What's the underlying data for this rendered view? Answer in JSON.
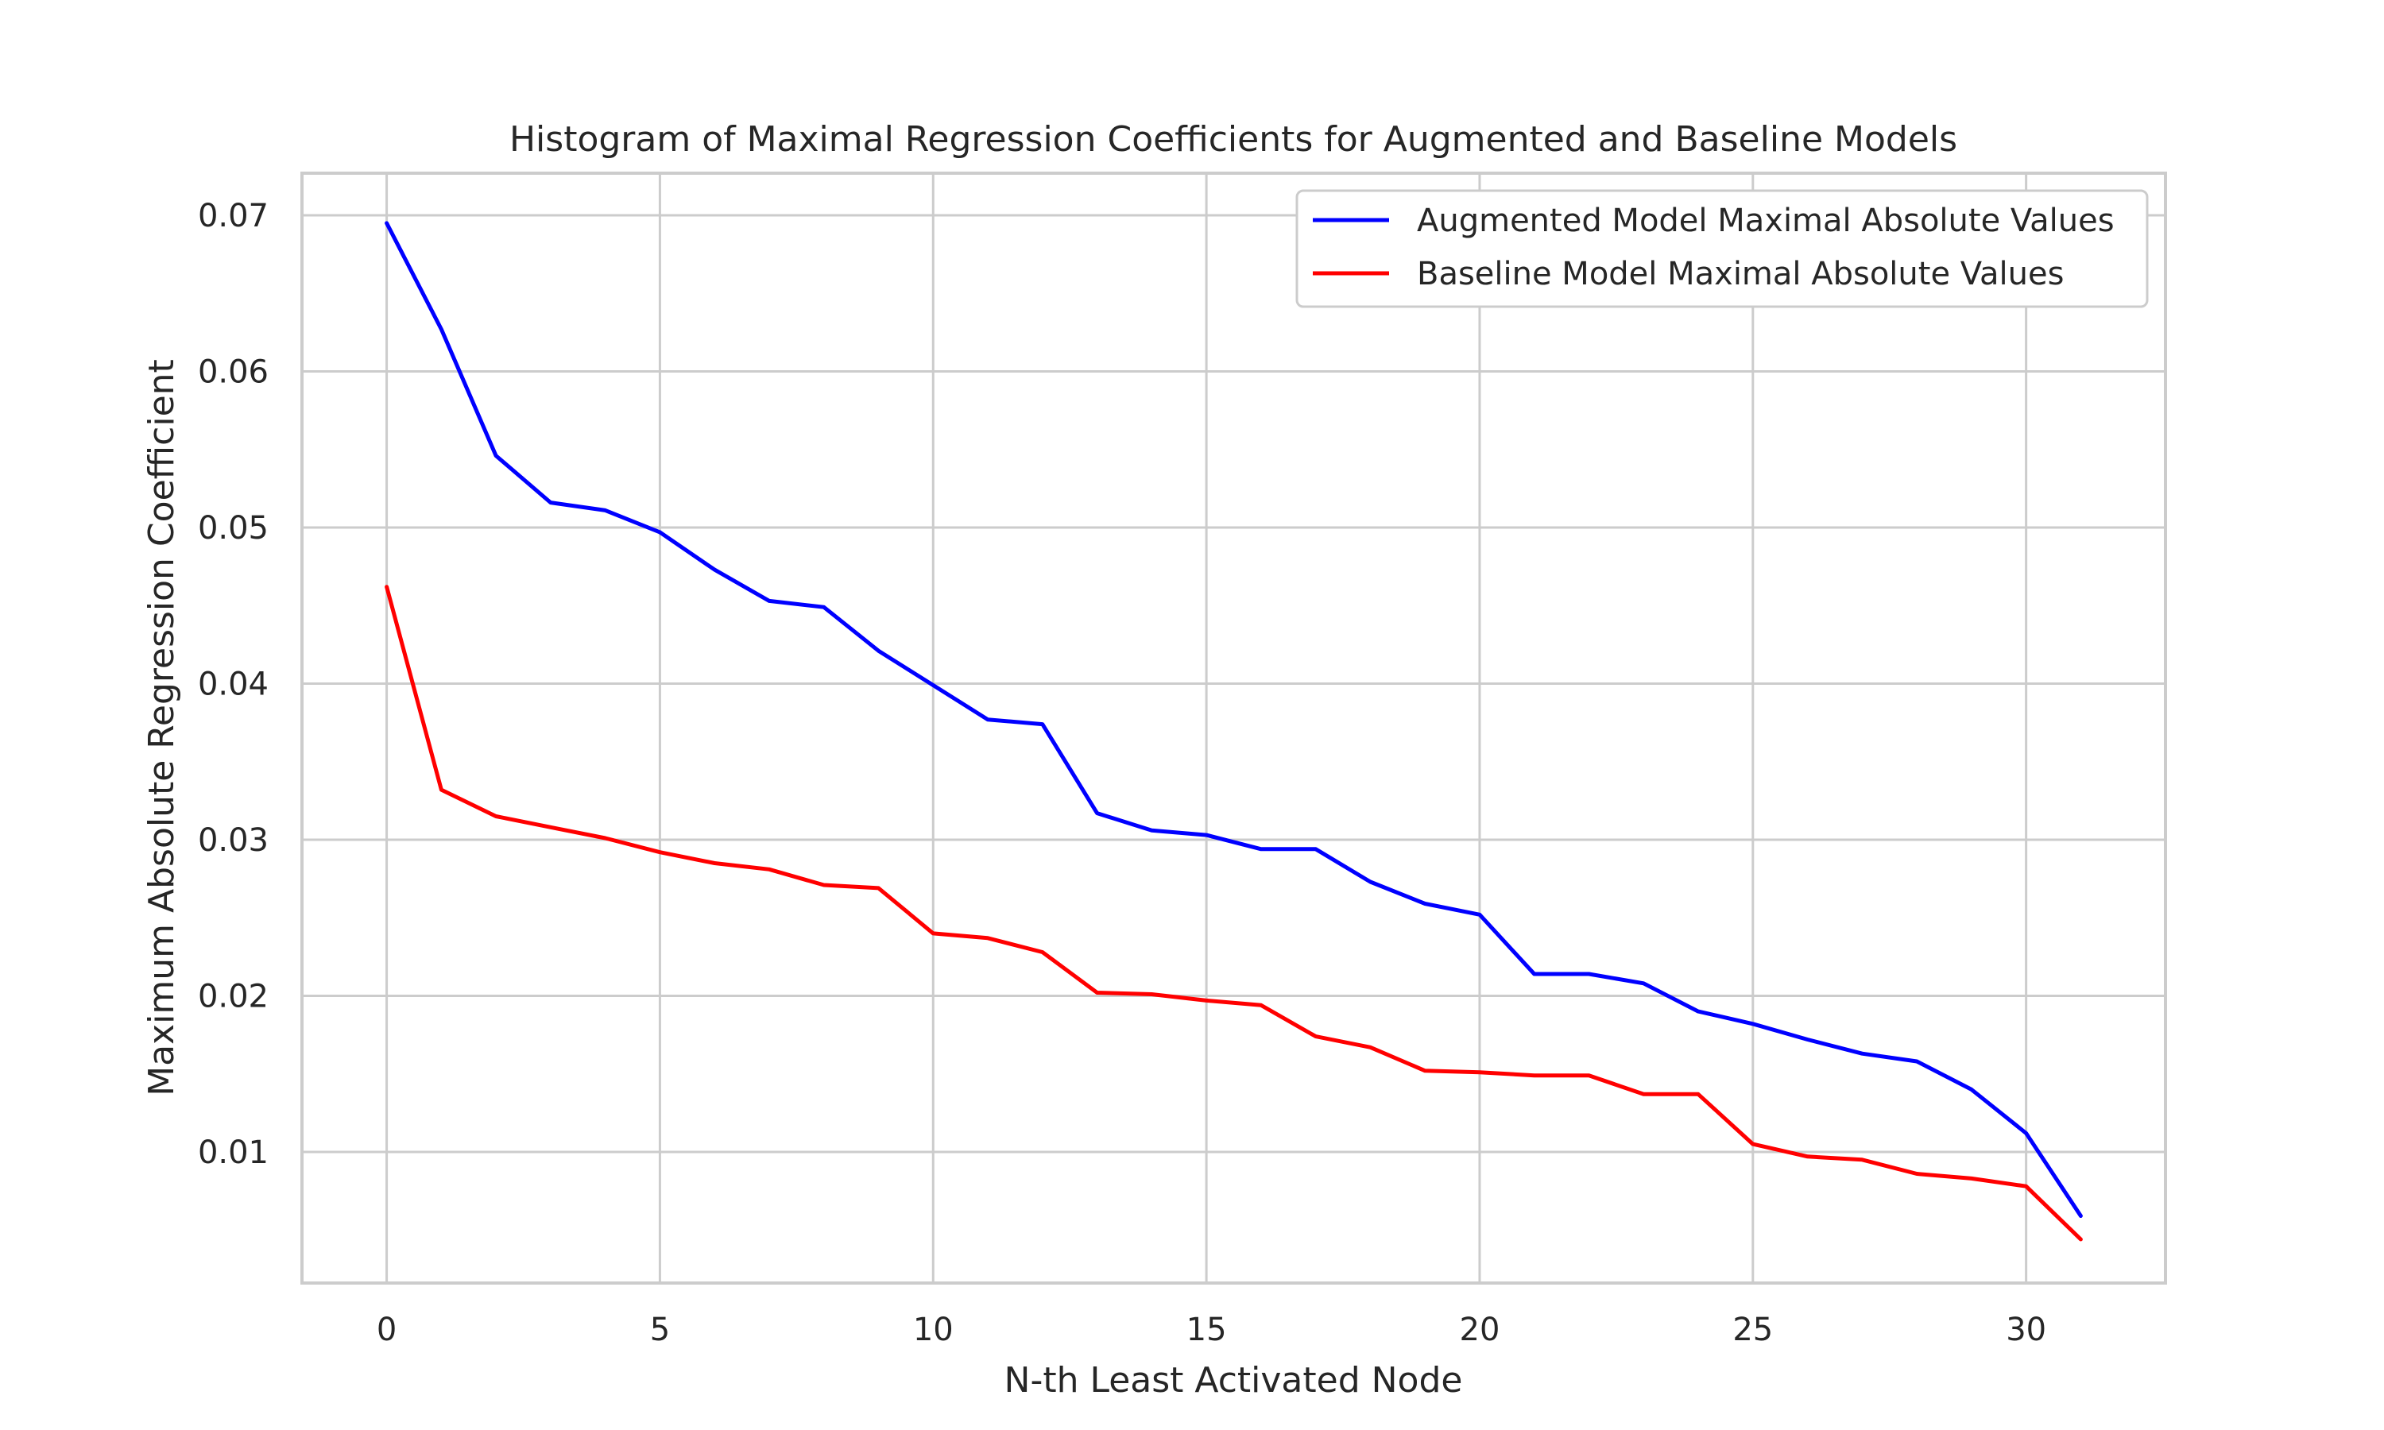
{
  "chart_data": {
    "type": "line",
    "title": "Histogram of Maximal Regression Coefficients for Augmented and Baseline Models",
    "xlabel": "N-th Least Activated Node",
    "ylabel": "Maximum Absolute Regression Coefficient",
    "xlim": [
      -1.55,
      32.55
    ],
    "ylim": [
      0.0016,
      0.0727
    ],
    "xticks": [
      0,
      5,
      10,
      15,
      20,
      25,
      30
    ],
    "yticks": [
      0.01,
      0.02,
      0.03,
      0.04,
      0.05,
      0.06,
      0.07
    ],
    "ytick_labels": [
      "0.01",
      "0.02",
      "0.03",
      "0.04",
      "0.05",
      "0.06",
      "0.07"
    ],
    "grid": true,
    "legend_position": "top-right",
    "x": [
      0,
      1,
      2,
      3,
      4,
      5,
      6,
      7,
      8,
      9,
      10,
      11,
      12,
      13,
      14,
      15,
      16,
      17,
      18,
      19,
      20,
      21,
      22,
      23,
      24,
      25,
      26,
      27,
      28,
      29,
      30,
      31
    ],
    "series": [
      {
        "name": "Augmented Model Maximal Absolute Values",
        "color": "#0000ff",
        "values": [
          0.0695,
          0.0627,
          0.0546,
          0.0516,
          0.0511,
          0.0497,
          0.0473,
          0.0453,
          0.0449,
          0.0421,
          0.0399,
          0.0377,
          0.0374,
          0.0317,
          0.0306,
          0.0303,
          0.0294,
          0.0294,
          0.0273,
          0.0259,
          0.0252,
          0.0214,
          0.0214,
          0.0208,
          0.019,
          0.0182,
          0.0172,
          0.0163,
          0.0158,
          0.014,
          0.0112,
          0.0059
        ]
      },
      {
        "name": "Baseline Model Maximal Absolute Values",
        "color": "#ff0000",
        "values": [
          0.0462,
          0.0332,
          0.0315,
          0.0308,
          0.0301,
          0.0292,
          0.0285,
          0.0281,
          0.0271,
          0.0269,
          0.024,
          0.0237,
          0.0228,
          0.0202,
          0.0201,
          0.0197,
          0.0194,
          0.0174,
          0.0167,
          0.0152,
          0.0151,
          0.0149,
          0.0149,
          0.0137,
          0.0137,
          0.0105,
          0.0097,
          0.0095,
          0.0086,
          0.0083,
          0.0078,
          0.0044
        ]
      }
    ]
  }
}
